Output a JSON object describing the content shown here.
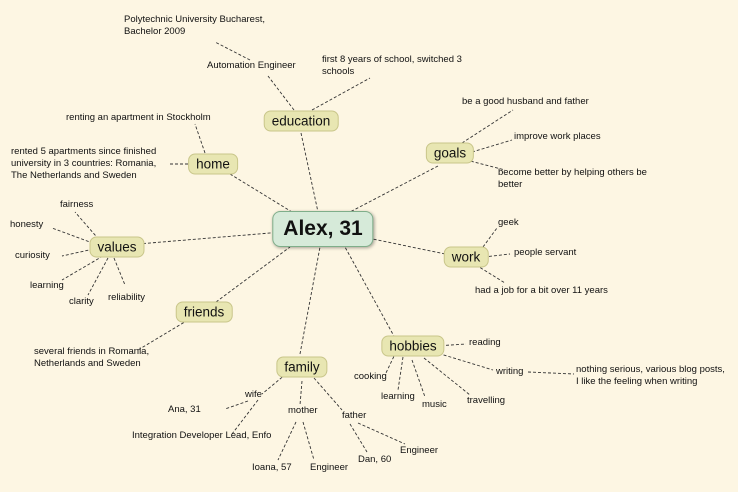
{
  "central": "Alex, 31",
  "branches": {
    "education": {
      "label": "education",
      "automation": "Automation Engineer",
      "polytechnic": "Polytechnic University Bucharest,\nBachelor 2009",
      "school": "first 8 years of school, switched 3\nschools"
    },
    "home": {
      "label": "home",
      "renting": "renting an apartment in Stockholm",
      "apartments": "rented 5 apartments since finished\nuniversity in 3 countries: Romania,\nThe Netherlands and Sweden"
    },
    "goals": {
      "label": "goals",
      "husband": "be a good husband and father",
      "workplaces": "improve work places",
      "better": "become better by helping others be\nbetter"
    },
    "values": {
      "label": "values",
      "fairness": "fairness",
      "honesty": "honesty",
      "curiosity": "curiosity",
      "learning": "learning",
      "clarity": "clarity",
      "reliability": "reliability"
    },
    "work": {
      "label": "work",
      "geek": "geek",
      "servant": "people servant",
      "job": "had a job for a bit over 11 years"
    },
    "friends": {
      "label": "friends",
      "several": "several friends in Romania,\nNetherlands and Sweden"
    },
    "hobbies": {
      "label": "hobbies",
      "reading": "reading",
      "writing": "writing",
      "writing_detail": "nothing serious, various blog posts,\nI like the feeling when writing",
      "cooking": "cooking",
      "learning": "learning",
      "music": "music",
      "travelling": "travelling"
    },
    "family": {
      "label": "family",
      "wife": "wife",
      "wife_name": "Ana, 31",
      "wife_job": "Integration Developer Lead, Enfo",
      "mother": "mother",
      "mother_name": "Ioana, 57",
      "mother_job": "Engineer",
      "father": "father",
      "father_name": "Dan, 60",
      "father_job": "Engineer"
    }
  }
}
